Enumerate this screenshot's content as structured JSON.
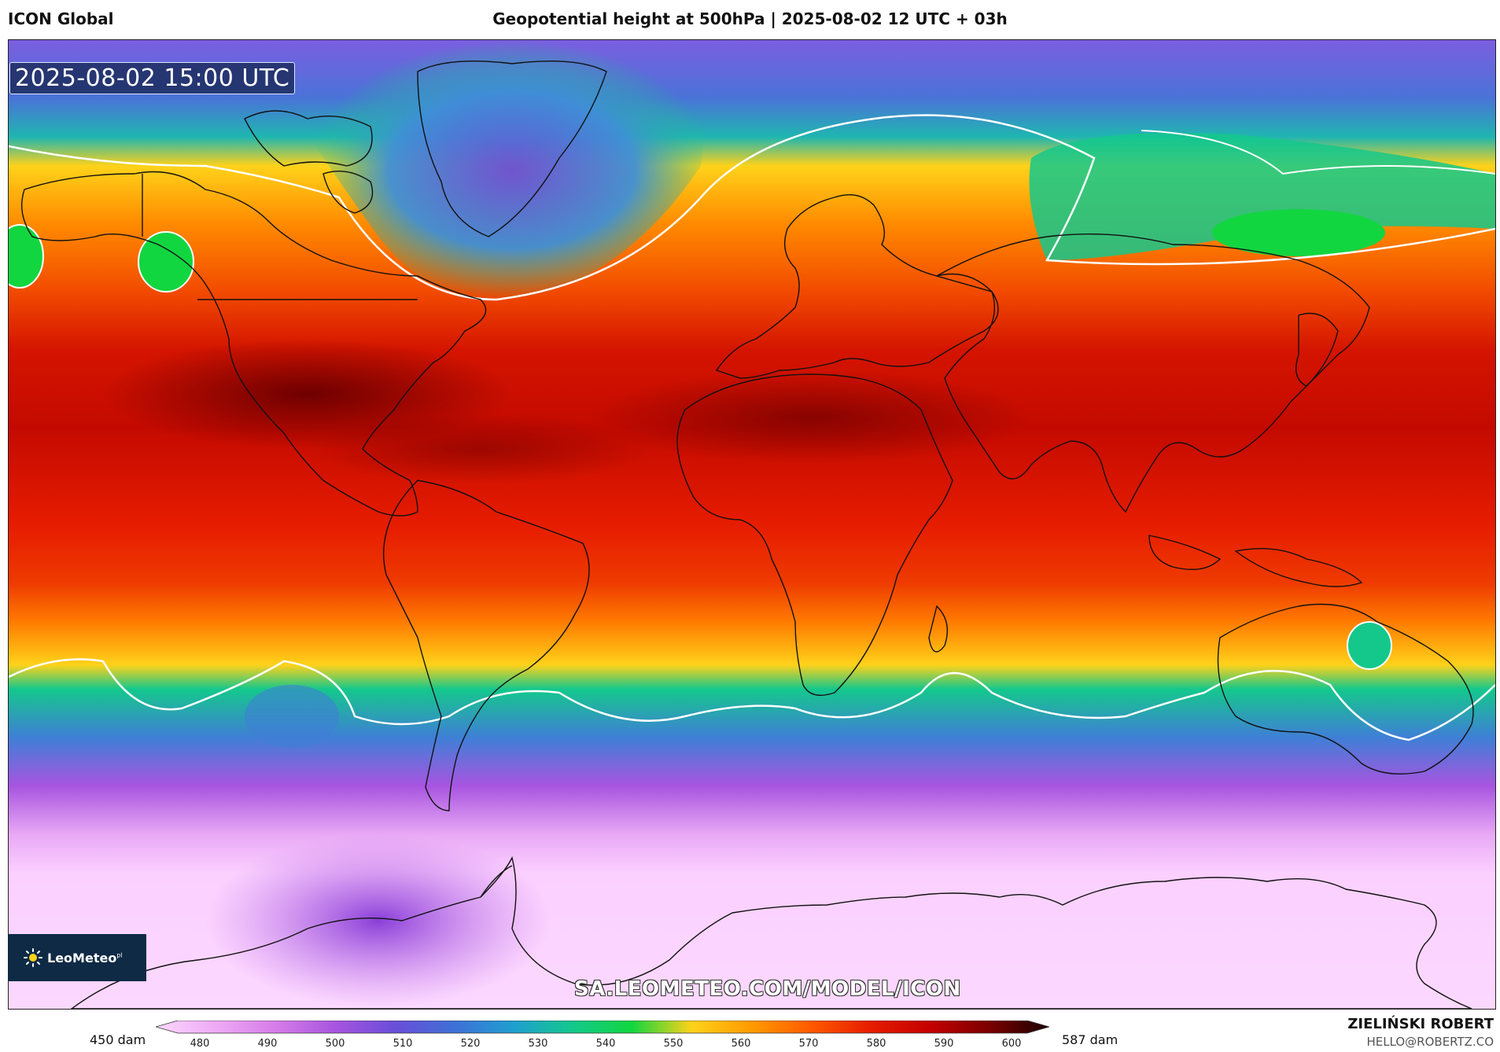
{
  "header": {
    "model": "ICON Global",
    "title": "Geopotential height at 500hPa | 2025-08-02 12 UTC + 03h"
  },
  "map": {
    "valid_time": "2025-08-02 15:00 UTC",
    "watermark": "SA.LEOMETEO.COM/MODEL/ICON",
    "logo_text": "LeoMeteo",
    "logo_suffix": "pl"
  },
  "colorbar": {
    "min_label": "450 dam",
    "max_label": "587 dam",
    "ticks": [
      "480",
      "490",
      "500",
      "510",
      "520",
      "530",
      "540",
      "550",
      "560",
      "570",
      "580",
      "590",
      "600"
    ],
    "stops": [
      "#fbd8ff",
      "#eeaaf5",
      "#d77de8",
      "#a855e0",
      "#6a4ed8",
      "#3f6fd6",
      "#1f9fd0",
      "#14c88c",
      "#12d640",
      "#ffd21a",
      "#ff9a00",
      "#ff5a00",
      "#e61c00",
      "#c40000",
      "#7a0000",
      "#1a0000"
    ]
  },
  "credit": {
    "name": "ZIELIŃSKI ROBERT",
    "email": "HELLO@ROBERTZ.CO"
  },
  "icons": {
    "logo": "sun-icon"
  }
}
